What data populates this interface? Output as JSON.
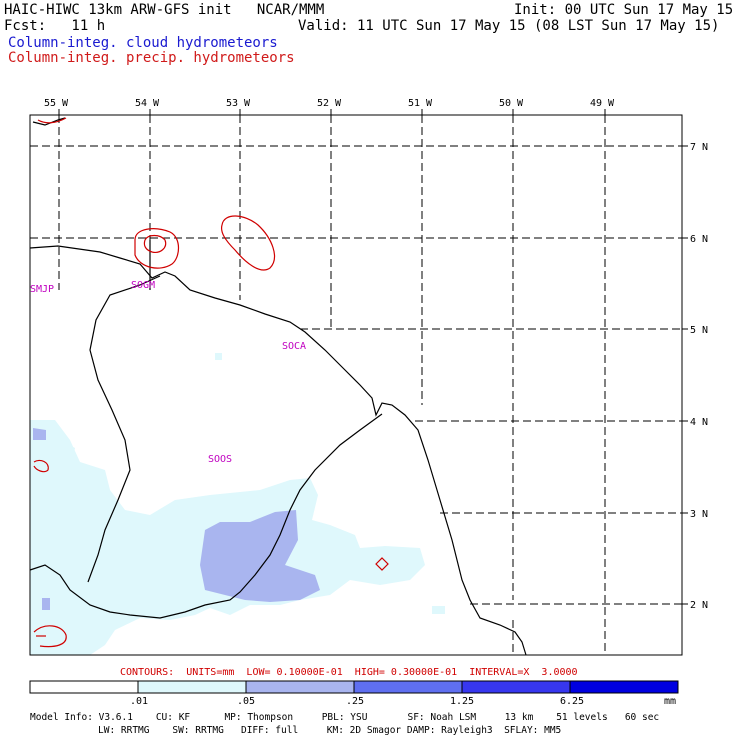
{
  "header": {
    "title_left": "HAIC-HIWC 13km ARW-GFS init   NCAR/MMM",
    "fcst": "Fcst:   11 h",
    "init": "Init: 00 UTC Sun 17 May 15",
    "valid": "Valid: 11 UTC Sun 17 May 15 (08 LST Sun 17 May 15)",
    "legend_cloud": "Column-integ. cloud hydrometeors",
    "legend_precip": "Column-integ. precip. hydrometeors"
  },
  "colors": {
    "cloud_legend": "#1a1ad0",
    "precip_legend": "#d01a1a",
    "shade_1": "#dff8fc",
    "shade_2": "#a9b5ef",
    "shade_3": "#5f6ff0",
    "shade_4": "#3737ef",
    "shade_5": "#0000e0"
  },
  "map": {
    "lon_labels": [
      "55 W",
      "54 W",
      "53 W",
      "52 W",
      "51 W",
      "50 W",
      "49 W"
    ],
    "lat_labels": [
      "7 N",
      "6 N",
      "5 N",
      "4 N",
      "3 N",
      "2 N"
    ],
    "stations": [
      "SMJP",
      "SOGM",
      "SOCA",
      "SOOS"
    ]
  },
  "contour_info": "CONTOURS:  UNITS=mm  LOW= 0.10000E-01  HIGH= 0.30000E-01  INTERVAL=X  3.0000",
  "colorbar": {
    "ticks": [
      ".01",
      ".05",
      ".25",
      "1.25",
      "6.25"
    ],
    "unit": "mm"
  },
  "model_info": {
    "line1": "Model Info: V3.6.1    CU: KF      MP: Thompson     PBL: YSU       SF: Noah LSM     13 km    51 levels   60 sec",
    "line2": "LW: RRTMG    SW: RRTMG   DIFF: full     KM: 2D Smagor DAMP: Rayleigh3  SFLAY: MM5"
  }
}
